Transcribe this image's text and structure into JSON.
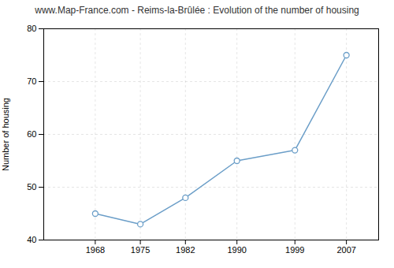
{
  "chart_data": {
    "type": "line",
    "title": "www.Map-France.com - Reims-la-Brûlée : Evolution of the number of housing",
    "ylabel": "Number of housing",
    "x": [
      1968,
      1975,
      1982,
      1990,
      1999,
      2007
    ],
    "values": [
      45,
      43,
      48,
      55,
      57,
      75
    ],
    "color": "#6b9ec8",
    "marker": "circle",
    "xlim": [
      1960,
      2012
    ],
    "xticks": [
      1968,
      1975,
      1982,
      1990,
      1999,
      2007
    ],
    "ylim": [
      40,
      80
    ],
    "yticks": [
      40,
      50,
      60,
      70,
      80
    ],
    "grid": true
  }
}
